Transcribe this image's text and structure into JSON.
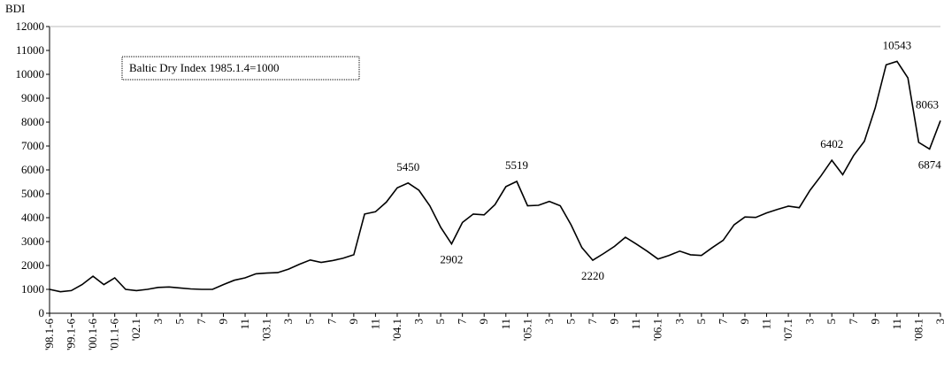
{
  "chart_data": {
    "type": "line",
    "y_label": "BDI",
    "annotation": "Baltic Dry Index  1985.1.4=1000",
    "categories": [
      "'98.1-6",
      null,
      "'99.1-6",
      null,
      "'00.1-6",
      null,
      "'01.1-6",
      null,
      "'02.1",
      null,
      "3",
      null,
      "5",
      null,
      "7",
      null,
      "9",
      null,
      "11",
      null,
      "'03.1",
      null,
      "3",
      null,
      "5",
      null,
      "7",
      null,
      "9",
      null,
      "11",
      null,
      "'04.1",
      null,
      "3",
      null,
      "5",
      null,
      "7",
      null,
      "9",
      null,
      "11",
      null,
      "'05.1",
      null,
      "3",
      null,
      "5",
      null,
      "7",
      null,
      "9",
      null,
      "11",
      null,
      "'06.1",
      null,
      "3",
      null,
      "5",
      null,
      "7",
      null,
      "9",
      null,
      "11",
      null,
      "'07.1",
      null,
      "3",
      null,
      "5",
      null,
      "7",
      null,
      "9",
      null,
      "11",
      null,
      "'08.1",
      null,
      "3"
    ],
    "values": [
      1000,
      900,
      950,
      1200,
      1550,
      1200,
      1480,
      1000,
      950,
      1000,
      1080,
      1100,
      1060,
      1020,
      1000,
      1000,
      1200,
      1380,
      1480,
      1650,
      1680,
      1700,
      1850,
      2050,
      2230,
      2130,
      2200,
      2300,
      2450,
      4150,
      4250,
      4650,
      5250,
      5450,
      5150,
      4500,
      3600,
      2902,
      3800,
      4150,
      4120,
      4550,
      5300,
      5519,
      4500,
      4520,
      4680,
      4500,
      3700,
      2750,
      2220,
      2500,
      2800,
      3180,
      2900,
      2600,
      2270,
      2420,
      2600,
      2450,
      2420,
      2750,
      3050,
      3700,
      4030,
      4010,
      4200,
      4350,
      4480,
      4420,
      5150,
      5750,
      6402,
      5800,
      6600,
      7200,
      8600,
      10400,
      10543,
      9850,
      7150,
      6874,
      8063
    ],
    "value_labels": [
      null,
      null,
      null,
      null,
      null,
      null,
      null,
      null,
      null,
      null,
      null,
      null,
      null,
      null,
      null,
      null,
      null,
      null,
      null,
      null,
      null,
      null,
      null,
      null,
      null,
      null,
      null,
      null,
      null,
      null,
      null,
      null,
      null,
      "5450",
      null,
      null,
      null,
      "2902",
      null,
      null,
      null,
      null,
      null,
      "5519",
      null,
      null,
      null,
      null,
      null,
      null,
      "2220",
      null,
      null,
      null,
      null,
      null,
      null,
      null,
      null,
      null,
      null,
      null,
      null,
      null,
      null,
      null,
      null,
      null,
      null,
      null,
      null,
      null,
      "6402",
      null,
      null,
      null,
      null,
      null,
      "10543",
      null,
      null,
      "6874",
      "8063"
    ],
    "color": "#000000",
    "ylim": [
      0,
      12000
    ],
    "yticks": [
      0,
      1000,
      2000,
      3000,
      4000,
      5000,
      6000,
      7000,
      8000,
      9000,
      10000,
      11000,
      12000
    ]
  }
}
